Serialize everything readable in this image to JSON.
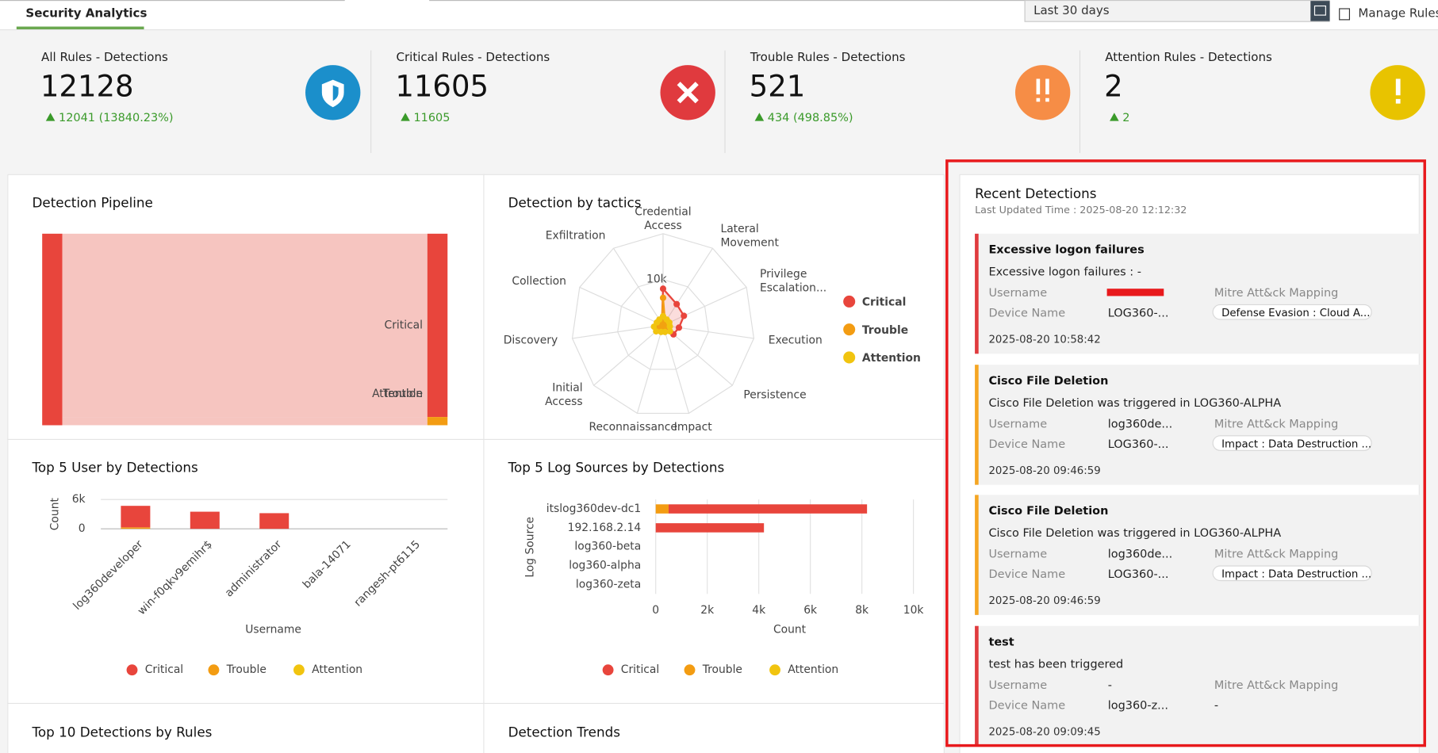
{
  "header": {
    "tab": "Security Analytics",
    "date_range": "Last 30 days",
    "manage_rules": "Manage Rules"
  },
  "kpis": [
    {
      "title": "All Rules - Detections",
      "value": 12128,
      "change": "12041 (13840.23%)",
      "color": "#1b8fcb"
    },
    {
      "title": "Critical Rules - Detections",
      "value": 11605,
      "change": 11605,
      "color": "#e03a3e"
    },
    {
      "title": "Trouble Rules - Detections",
      "value": 521,
      "change": "434 (498.85%)",
      "color": "#f68d46"
    },
    {
      "title": "Attention Rules - Detections",
      "value": 2,
      "change": 2,
      "color": "#e8c300"
    }
  ],
  "chart_data": [
    {
      "type": "sankey",
      "title": "Detection Pipeline",
      "source": "Critical",
      "targets": [
        "Critical",
        "Trouble",
        "Attention"
      ],
      "values": [
        11605,
        521,
        2
      ],
      "colors": [
        "#e8453c",
        "#f39c12",
        "#f1c40f"
      ],
      "link_color": "#f6c5c0"
    },
    {
      "type": "radar",
      "title": "Detection by tactics",
      "axes": [
        "Credential Access",
        "Lateral Movement",
        "Privilege Escalation...",
        "Execution",
        "Persistence",
        "Impact",
        "Reconnaissance",
        "Initial Access",
        "Discovery",
        "Collection",
        "Exfiltration"
      ],
      "rlim": [
        0,
        20000
      ],
      "rticks": [
        0,
        {
          "value": 10000,
          "label": "10k"
        }
      ],
      "series": [
        {
          "name": "Critical",
          "color": "#e8453c",
          "values": [
            8000,
            5500,
            5000,
            3500,
            3000,
            1000,
            500,
            1000,
            1500,
            1000,
            500
          ]
        },
        {
          "name": "Trouble",
          "color": "#f39c12",
          "values": [
            6000,
            800,
            500,
            500,
            500,
            500,
            500,
            800,
            500,
            500,
            500
          ]
        },
        {
          "name": "Attention",
          "color": "#f1c40f",
          "values": [
            2000,
            1500,
            1500,
            1500,
            2000,
            1500,
            1500,
            2000,
            2000,
            1500,
            1500
          ]
        }
      ]
    },
    {
      "type": "bar",
      "title": "Top 5 User by Detections",
      "xlabel": "Username",
      "ylabel": "Count",
      "categories": [
        "log360developer",
        "win-f0qkv9emihr$",
        "administrator",
        "bala-14071",
        "rangesh-pt6115"
      ],
      "ylim": [
        0,
        6000
      ],
      "yticks": [
        0,
        {
          "value": 6000,
          "label": "6k"
        }
      ],
      "grid": true,
      "series": [
        {
          "name": "Critical",
          "color": "#e8453c",
          "values": [
            4400,
            3500,
            3200,
            0,
            0
          ]
        },
        {
          "name": "Trouble",
          "color": "#f39c12",
          "values": [
            300,
            0,
            0,
            0,
            0
          ]
        },
        {
          "name": "Attention",
          "color": "#f1c40f",
          "values": [
            0,
            0,
            0,
            0,
            0
          ]
        }
      ]
    },
    {
      "type": "hbar",
      "title": "Top 5 Log Sources by Detections",
      "xlabel": "Count",
      "ylabel": "Log Source",
      "categories": [
        "itslog360dev-dc1",
        "192.168.2.14",
        "log360-beta",
        "log360-alpha",
        "log360-zeta"
      ],
      "xlim": [
        0,
        10000
      ],
      "xticks": [
        0,
        {
          "value": 2000,
          "label": "2k"
        },
        {
          "value": 4000,
          "label": "4k"
        },
        {
          "value": 6000,
          "label": "6k"
        },
        {
          "value": 8000,
          "label": "8k"
        },
        {
          "value": 10000,
          "label": "10k"
        }
      ],
      "grid": true,
      "series": [
        {
          "name": "Critical",
          "color": "#e8453c",
          "values": [
            7700,
            4200,
            0,
            0,
            0
          ]
        },
        {
          "name": "Trouble",
          "color": "#f39c12",
          "values": [
            500,
            0,
            0,
            0,
            0
          ]
        },
        {
          "name": "Attention",
          "color": "#f1c40f",
          "values": [
            0,
            0,
            0,
            0,
            0
          ]
        }
      ]
    }
  ],
  "recent_detections": {
    "title": "Recent Detections",
    "updated": "Last Updated Time : 2025-08-20 12:12:32",
    "labels": {
      "username": "Username",
      "device": "Device Name",
      "mitre": "Mitre Att&ck Mapping"
    },
    "items": [
      {
        "title": "Excessive logon failures",
        "description": "Excessive logon failures : -",
        "device": "LOG360-...",
        "mitre": "Defense Evasion : Cloud A...",
        "mitre_tag": true,
        "time": "2025-08-20 10:58:42",
        "color": "#e03a3e"
      },
      {
        "title": "Cisco File Deletion",
        "description": "Cisco File Deletion was triggered in LOG360-ALPHA",
        "username": "log360de...",
        "device": "LOG360-...",
        "mitre": "Impact : Data Destruction ...",
        "mitre_tag": true,
        "time": "2025-08-20 09:46:59",
        "color": "#f5a623"
      },
      {
        "title": "Cisco File Deletion",
        "description": "Cisco File Deletion was triggered in LOG360-ALPHA",
        "username": "log360de...",
        "device": "LOG360-...",
        "mitre": "Impact : Data Destruction ...",
        "mitre_tag": true,
        "time": "2025-08-20 09:46:59",
        "color": "#f5a623"
      },
      {
        "title": "test",
        "description": "test has been triggered",
        "username": "-",
        "device": "log360-z...",
        "mitre": "-",
        "mitre_tag": false,
        "time": "2025-08-20 09:09:45",
        "color": "#e03a3e"
      }
    ]
  },
  "panels": [
    "Top 10 Detections by Rules",
    "Detection Trends"
  ]
}
